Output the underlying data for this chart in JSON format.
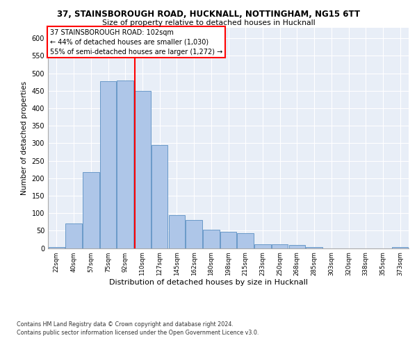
{
  "title1": "37, STAINSBOROUGH ROAD, HUCKNALL, NOTTINGHAM, NG15 6TT",
  "title2": "Size of property relative to detached houses in Hucknall",
  "xlabel": "Distribution of detached houses by size in Hucknall",
  "ylabel": "Number of detached properties",
  "footnote1": "Contains HM Land Registry data © Crown copyright and database right 2024.",
  "footnote2": "Contains public sector information licensed under the Open Government Licence v3.0.",
  "categories": [
    "22sqm",
    "40sqm",
    "57sqm",
    "75sqm",
    "92sqm",
    "110sqm",
    "127sqm",
    "145sqm",
    "162sqm",
    "180sqm",
    "198sqm",
    "215sqm",
    "233sqm",
    "250sqm",
    "268sqm",
    "285sqm",
    "303sqm",
    "320sqm",
    "338sqm",
    "355sqm",
    "373sqm"
  ],
  "values": [
    3,
    70,
    218,
    477,
    479,
    450,
    295,
    95,
    80,
    53,
    47,
    42,
    11,
    11,
    8,
    2,
    0,
    0,
    0,
    0,
    2
  ],
  "bar_color": "#aec6e8",
  "bar_edge_color": "#5a8fc2",
  "bg_color": "#e8eef7",
  "grid_color": "#ffffff",
  "annotation_text": "37 STAINSBOROUGH ROAD: 102sqm\n← 44% of detached houses are smaller (1,030)\n55% of semi-detached houses are larger (1,272) →",
  "ylim": [
    0,
    630
  ],
  "yticks": [
    0,
    50,
    100,
    150,
    200,
    250,
    300,
    350,
    400,
    450,
    500,
    550,
    600
  ]
}
